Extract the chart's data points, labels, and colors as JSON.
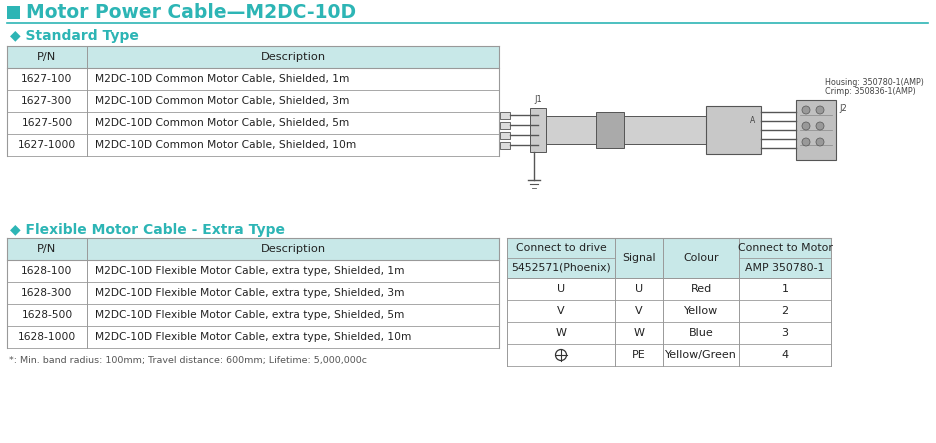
{
  "title": "Motor Power Cable—M2DC-10D",
  "title_color": "#2db5b5",
  "title_square_color": "#2db5b5",
  "bg_color": "#ffffff",
  "section1_title": "◆ Standard Type",
  "section2_title": "◆ Flexible Motor Cable - Extra Type",
  "section_title_color": "#2db5b5",
  "table_header_bg": "#c8e8e8",
  "table_border_color": "#999999",
  "std_headers": [
    "P/N",
    "Description"
  ],
  "std_rows": [
    [
      "1627-100",
      "M2DC-10D Common Motor Cable, Shielded, 1m"
    ],
    [
      "1627-300",
      "M2DC-10D Common Motor Cable, Shielded, 3m"
    ],
    [
      "1627-500",
      "M2DC-10D Common Motor Cable, Shielded, 5m"
    ],
    [
      "1627-1000",
      "M2DC-10D Common Motor Cable, Shielded, 10m"
    ]
  ],
  "flex_headers": [
    "P/N",
    "Description"
  ],
  "flex_rows": [
    [
      "1628-100",
      "M2DC-10D Flexible Motor Cable, extra type, Shielded, 1m"
    ],
    [
      "1628-300",
      "M2DC-10D Flexible Motor Cable, extra type, Shielded, 3m"
    ],
    [
      "1628-500",
      "M2DC-10D Flexible Motor Cable, extra type, Shielded, 5m"
    ],
    [
      "1628-1000",
      "M2DC-10D Flexible Motor Cable, extra type, Shielded, 10m"
    ]
  ],
  "flex_note": "*: Min. band radius: 100mm; Travel distance: 600mm; Lifetime: 5,000,000c",
  "conn_header1": "Connect to drive",
  "conn_header2": "Signal",
  "conn_header3": "Colour",
  "conn_header4": "Connect to Motor",
  "conn_sub1": "5452571(Phoenix)",
  "conn_sub4": "AMP 350780-1",
  "conn_rows": [
    [
      "U",
      "U",
      "Red",
      "1"
    ],
    [
      "V",
      "V",
      "Yellow",
      "2"
    ],
    [
      "W",
      "W",
      "Blue",
      "3"
    ],
    [
      "⊕",
      "PE",
      "Yellow/Green",
      "4"
    ]
  ],
  "housing_label": "Housing: 350780-1(AMP)",
  "crimp_label": "Crimp: 350836-1(AMP)"
}
